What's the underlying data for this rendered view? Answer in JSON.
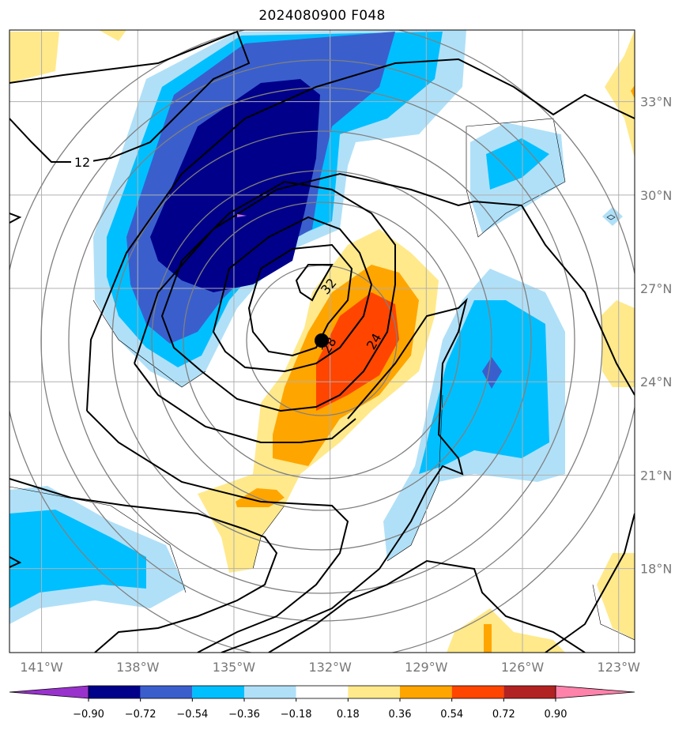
{
  "title": "2024080900 F048",
  "chart_data": {
    "type": "contour-map",
    "title": "2024080900 F048",
    "map": {
      "lon_range": [
        -142,
        -122.5
      ],
      "lat_range": [
        15.3,
        35.3
      ],
      "lon_ticks": [
        -141,
        -138,
        -135,
        -132,
        -129,
        -126,
        -123
      ],
      "lat_ticks": [
        18,
        21,
        24,
        27,
        30,
        33
      ],
      "lon_tick_labels": [
        "141°W",
        "138°W",
        "135°W",
        "132°W",
        "129°W",
        "126°W",
        "123°W"
      ],
      "lat_tick_labels": [
        "18°N",
        "21°N",
        "24°N",
        "27°N",
        "30°N",
        "33°N"
      ],
      "grid": true,
      "lat_labels_side": "right"
    },
    "storm_center": {
      "lon": -132.3,
      "lat": 25.0
    },
    "range_rings_count": 6,
    "line_contours": [
      {
        "value": 12,
        "label": "12"
      },
      {
        "value": 24,
        "label": "24"
      },
      {
        "value": 28,
        "label": "28"
      },
      {
        "value": 32,
        "label": "32"
      }
    ],
    "colorbar": {
      "levels": [
        "−0.90",
        "−0.72",
        "−0.54",
        "−0.36",
        "−0.18",
        "0.18",
        "0.36",
        "0.54",
        "0.72",
        "0.90"
      ],
      "colors": [
        "#9932cc",
        "#00008b",
        "#3a5fcd",
        "#00bfff",
        "#b0e0f8",
        "#ffffff",
        "#ffe98b",
        "#ffa500",
        "#ff4500",
        "#b22222",
        "#ff82ab"
      ],
      "extend": "both"
    },
    "filled_regions": [
      {
        "value": -0.9,
        "lon": -134.7,
        "lat": 28.7
      },
      {
        "value": -0.72,
        "lon": -134.5,
        "lat": 30.0
      },
      {
        "value": -0.54,
        "lon": -135.0,
        "lat": 29.0
      },
      {
        "value": -0.36,
        "lon": -126.8,
        "lat": 31.0
      },
      {
        "value": -0.36,
        "lon": -126.7,
        "lat": 23.5
      },
      {
        "value": -0.36,
        "lon": -140.0,
        "lat": 18.0
      },
      {
        "value": 0.36,
        "lon": -131.0,
        "lat": 24.5
      },
      {
        "value": 0.54,
        "lon": -130.8,
        "lat": 25.0
      },
      {
        "value": 0.36,
        "lon": -133.5,
        "lat": 19.7
      },
      {
        "value": 0.18,
        "lon": -122.8,
        "lat": 24.5
      }
    ]
  }
}
